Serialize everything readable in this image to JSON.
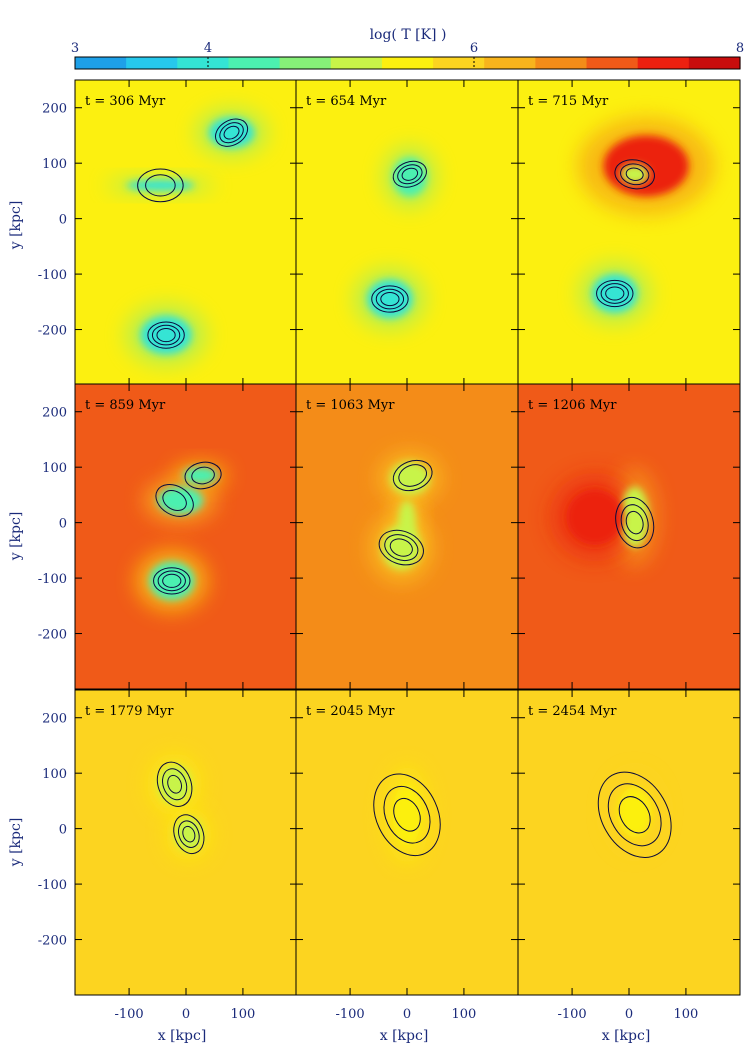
{
  "chart_data": {
    "type": "heatmap",
    "colorbar": {
      "label": "log( T [K] )",
      "min": 3,
      "max": 8,
      "ticks": [
        "3",
        "4",
        "6",
        "8"
      ],
      "tick_values": [
        3,
        4,
        6,
        8
      ],
      "colors": [
        "#1ea0e8",
        "#26c8ec",
        "#34e4d4",
        "#4cf0b0",
        "#86f078",
        "#c8f448",
        "#fcf010",
        "#fcd420",
        "#f8b41c",
        "#f48c18",
        "#f05a18",
        "#ec2010",
        "#c80c0c"
      ]
    },
    "xlabel": "x [kpc]",
    "ylabel": "y [kpc]",
    "xlim": [
      -195,
      195
    ],
    "ylim": [
      -300,
      250
    ],
    "xticks": [
      "-100",
      "0",
      "100"
    ],
    "xtick_values": [
      -100,
      0,
      100
    ],
    "yticks": [
      "200",
      "100",
      "0",
      "-100",
      "-200"
    ],
    "ytick_values": [
      200,
      100,
      0,
      -100,
      -200
    ],
    "panels": [
      {
        "label": "t =  306 Myr",
        "background": 5.5,
        "blobs": [
          {
            "x": -45,
            "y": 60,
            "rx": 60,
            "ry": 10,
            "logT": 4.0
          },
          {
            "x": 80,
            "y": 155,
            "rx": 40,
            "ry": 28,
            "logT": 4.1
          },
          {
            "x": -35,
            "y": -210,
            "rx": 45,
            "ry": 35,
            "logT": 4.0
          }
        ],
        "contours": [
          {
            "x": 80,
            "y": 155,
            "r": [
              30,
              22,
              14
            ],
            "angle": -30
          },
          {
            "x": -35,
            "y": -210,
            "r": [
              32,
              24,
              16
            ],
            "angle": 0
          },
          {
            "x": -45,
            "y": 60,
            "r": [
              40,
              26
            ],
            "angle": 0
          }
        ]
      },
      {
        "label": "t =  654 Myr",
        "background": 5.4,
        "blobs": [
          {
            "x": 5,
            "y": 75,
            "rx": 30,
            "ry": 35,
            "logT": 4.3
          },
          {
            "x": -30,
            "y": -145,
            "rx": 40,
            "ry": 35,
            "logT": 4.0
          }
        ],
        "contours": [
          {
            "x": 5,
            "y": 80,
            "r": [
              30,
              22,
              14
            ],
            "angle": -20
          },
          {
            "x": -30,
            "y": -145,
            "r": [
              32,
              24,
              16
            ],
            "angle": 0
          }
        ]
      },
      {
        "label": "t =  715 Myr",
        "background": 5.6,
        "blobs": [
          {
            "x": 30,
            "y": 95,
            "rx": 75,
            "ry": 55,
            "logT": 7.4
          },
          {
            "x": 10,
            "y": 80,
            "rx": 25,
            "ry": 18,
            "logT": 5.1
          },
          {
            "x": -25,
            "y": -135,
            "rx": 40,
            "ry": 35,
            "logT": 4.0
          }
        ],
        "contours": [
          {
            "x": 10,
            "y": 80,
            "r": [
              35,
              25,
              15
            ],
            "angle": 10
          },
          {
            "x": -25,
            "y": -135,
            "r": [
              32,
              24,
              16
            ],
            "angle": 0
          }
        ]
      },
      {
        "label": "t =  859 Myr",
        "background": 6.9,
        "blobs": [
          {
            "x": 25,
            "y": 85,
            "rx": 30,
            "ry": 15,
            "logT": 4.3
          },
          {
            "x": -10,
            "y": 40,
            "rx": 40,
            "ry": 25,
            "logT": 4.5
          },
          {
            "x": -25,
            "y": -105,
            "rx": 40,
            "ry": 35,
            "logT": 4.2
          }
        ],
        "contours": [
          {
            "x": 30,
            "y": 85,
            "r": [
              32,
              20
            ],
            "angle": -10
          },
          {
            "x": -20,
            "y": 40,
            "r": [
              35,
              22
            ],
            "angle": 30
          },
          {
            "x": -25,
            "y": -105,
            "r": [
              32,
              24,
              16
            ],
            "angle": 0
          }
        ]
      },
      {
        "label": "t =  1063 Myr",
        "background": 6.5,
        "blobs": [
          {
            "x": 5,
            "y": 80,
            "rx": 35,
            "ry": 30,
            "logT": 5.0
          },
          {
            "x": 0,
            "y": 0,
            "rx": 15,
            "ry": 40,
            "logT": 5.2
          },
          {
            "x": -10,
            "y": -45,
            "rx": 35,
            "ry": 40,
            "logT": 5.0
          }
        ],
        "contours": [
          {
            "x": 10,
            "y": 85,
            "r": [
              35,
              25
            ],
            "angle": -20
          },
          {
            "x": -10,
            "y": -45,
            "r": [
              40,
              30,
              20
            ],
            "angle": 20
          }
        ]
      },
      {
        "label": "t =  1206 Myr",
        "background": 7.0,
        "blobs": [
          {
            "x": 10,
            "y": 10,
            "rx": 25,
            "ry": 55,
            "logT": 5.2
          },
          {
            "x": -60,
            "y": 10,
            "rx": 50,
            "ry": 50,
            "logT": 7.6
          }
        ],
        "contours": [
          {
            "x": 10,
            "y": 0,
            "r": [
              45,
              32,
              20
            ],
            "angle": 75
          }
        ]
      },
      {
        "label": "t =  1779 Myr",
        "background": 5.8,
        "blobs": [
          {
            "x": -20,
            "y": 80,
            "rx": 30,
            "ry": 35,
            "logT": 5.3
          },
          {
            "x": 5,
            "y": -10,
            "rx": 25,
            "ry": 30,
            "logT": 5.3
          }
        ],
        "contours": [
          {
            "x": -20,
            "y": 80,
            "r": [
              40,
              28,
              16
            ],
            "angle": 70
          },
          {
            "x": 5,
            "y": -10,
            "r": [
              35,
              24,
              14
            ],
            "angle": 70
          }
        ]
      },
      {
        "label": "t =  2045 Myr",
        "background": 5.8,
        "blobs": [
          {
            "x": 0,
            "y": 25,
            "rx": 25,
            "ry": 55,
            "logT": 5.4
          }
        ],
        "contours": [
          {
            "x": 0,
            "y": 25,
            "r": [
              75,
              52,
              30
            ],
            "angle": 65
          }
        ]
      },
      {
        "label": "t =  2454 Myr",
        "background": 5.9,
        "blobs": [
          {
            "x": 10,
            "y": 30,
            "rx": 30,
            "ry": 45,
            "logT": 5.5
          }
        ],
        "contours": [
          {
            "x": 10,
            "y": 25,
            "r": [
              80,
              58,
              34
            ],
            "angle": 60
          }
        ]
      }
    ]
  }
}
